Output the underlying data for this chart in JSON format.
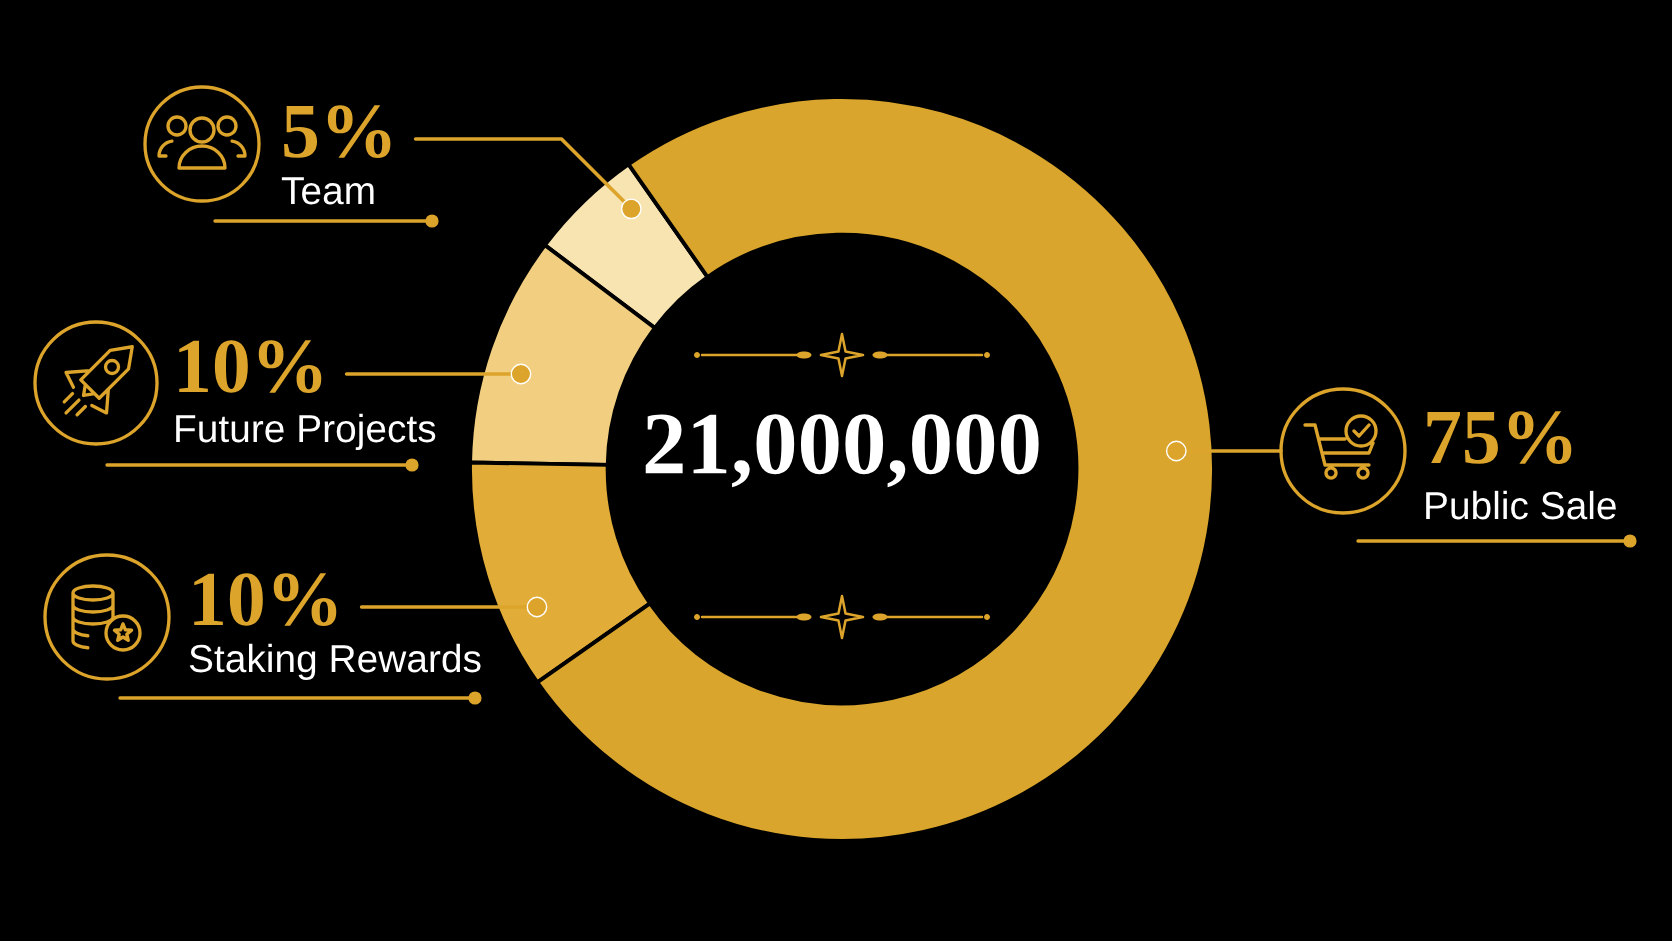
{
  "chart_data": {
    "type": "donut",
    "categories": [
      "Team",
      "Future Projects",
      "Staking Rewards",
      "Public Sale"
    ],
    "values": [
      5,
      10,
      10,
      75
    ],
    "colors": [
      "#f8e4b0",
      "#f2cf80",
      "#e2ac38",
      "#d9a52c"
    ],
    "value_labels": [
      "5%",
      "10%",
      "10%",
      "75%"
    ],
    "annotations": [
      "21,000,000"
    ]
  }
}
